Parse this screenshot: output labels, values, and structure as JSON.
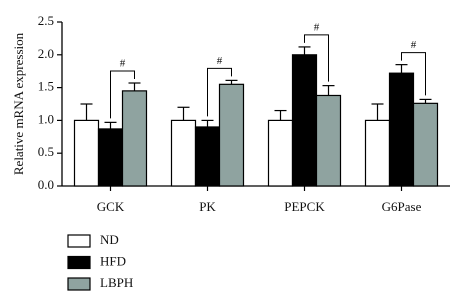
{
  "chart_data": {
    "type": "bar",
    "y_label": "Relative mRNA expression",
    "categories": [
      "GCK",
      "PK",
      "PEPCK",
      "G6Pase"
    ],
    "series": [
      {
        "name": "ND",
        "color": "#ffffff",
        "values": [
          1.0,
          1.0,
          1.0,
          1.0
        ],
        "errors": [
          0.25,
          0.2,
          0.15,
          0.25
        ]
      },
      {
        "name": "HFD",
        "color": "#000000",
        "values": [
          0.87,
          0.9,
          2.0,
          1.72
        ],
        "errors": [
          0.1,
          0.1,
          0.12,
          0.13
        ]
      },
      {
        "name": "LBPH",
        "color": "#8fa3a0",
        "values": [
          1.45,
          1.55,
          1.38,
          1.26
        ],
        "errors": [
          0.12,
          0.06,
          0.15,
          0.06
        ]
      }
    ],
    "annotations": [
      "#",
      "#",
      "#",
      "#"
    ],
    "ylim": [
      0,
      2.5
    ],
    "yticks": [
      {
        "value": 0,
        "label": "0.0"
      },
      0.5,
      {
        "value": 1,
        "label": "1.0"
      },
      1.5,
      {
        "value": 2,
        "label": "2.0"
      },
      2.5
    ]
  }
}
